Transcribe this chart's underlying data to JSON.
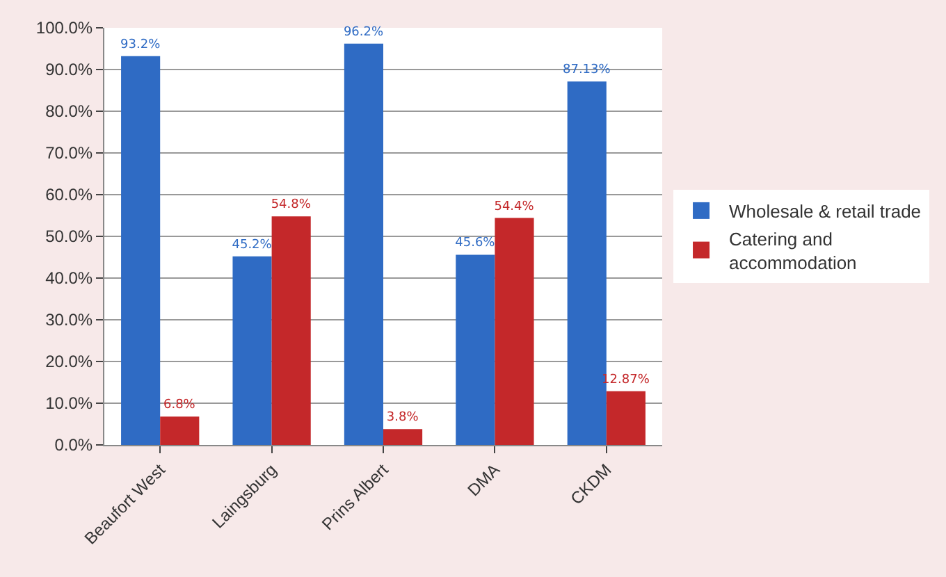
{
  "chart_data": {
    "type": "bar",
    "categories": [
      "Beaufort West",
      "Laingsburg",
      "Prins Albert",
      "DMA",
      "CKDM"
    ],
    "series": [
      {
        "name": "Wholesale & retail trade",
        "color": "#2f6bc4",
        "values": [
          93.2,
          45.2,
          96.2,
          45.6,
          87.13
        ],
        "value_labels": [
          "93.2%",
          "45.2%",
          "96.2%",
          "45.6%",
          "87.13%"
        ]
      },
      {
        "name": "Catering and accommodation",
        "color": "#c4282a",
        "values": [
          6.8,
          54.8,
          3.8,
          54.4,
          12.87
        ],
        "value_labels": [
          "6.8%",
          "54.8%",
          "3.8%",
          "54.4%",
          "12.87%"
        ]
      }
    ],
    "ylim": [
      0,
      100
    ],
    "yticks": [
      {
        "value": 0,
        "label": "0.0%"
      },
      {
        "value": 10,
        "label": "10.0%"
      },
      {
        "value": 20,
        "label": "20.0%"
      },
      {
        "value": 30,
        "label": "30.0%"
      },
      {
        "value": 40,
        "label": "40.0%"
      },
      {
        "value": 50,
        "label": "50.0%"
      },
      {
        "value": 60,
        "label": "60.0%"
      },
      {
        "value": 70,
        "label": "70.0%"
      },
      {
        "value": 80,
        "label": "80.0%"
      },
      {
        "value": 90,
        "label": "90.0%"
      },
      {
        "value": 100,
        "label": "100.0%"
      }
    ],
    "grid": "y",
    "legend": "right"
  }
}
